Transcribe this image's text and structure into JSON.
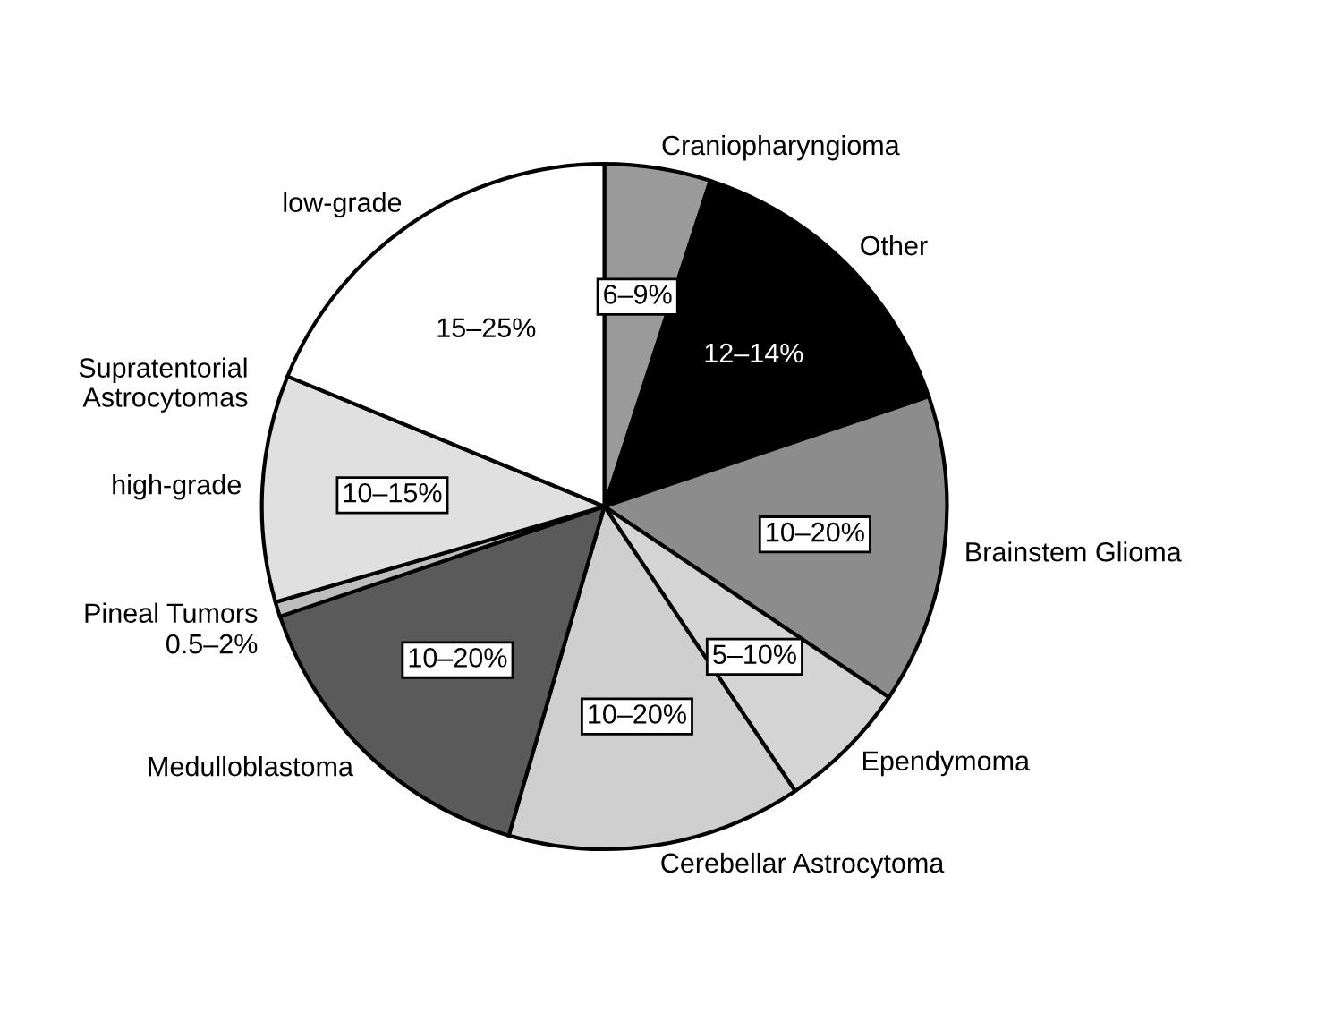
{
  "chart_data": {
    "type": "pie",
    "categories": [
      "Craniopharyngioma",
      "Other",
      "Brainstem Glioma",
      "Ependymoma",
      "Cerebellar Astrocytoma",
      "Medulloblastoma",
      "Pineal Tumors",
      "high-grade",
      "low-grade"
    ],
    "values": [
      5.0,
      14.8,
      14.6,
      6.2,
      13.9,
      15.3,
      0.7,
      10.7,
      18.8
    ],
    "colors": [
      "#9a9a9a",
      "#000000",
      "#8c8c8c",
      "#d4d4d4",
      "#cfcfcf",
      "#5a5a5a",
      "#bdbdbd",
      "#e0e0e0",
      "#ffffff"
    ],
    "annotations": [
      "Supratentorial\nAstrocytomas",
      {
        "text": "6–9%",
        "x": "Craniopharyngioma"
      },
      {
        "text": "12–14%",
        "x": "Other"
      },
      {
        "text": "10–20%",
        "x": "Brainstem Glioma"
      },
      {
        "text": "5–10%",
        "x": "Ependymoma"
      },
      {
        "text": "10–20%",
        "x": "Cerebellar Astrocytoma"
      },
      {
        "text": "10–20%",
        "x": "Medulloblastoma"
      },
      {
        "text": "0.5–2%",
        "x": "Pineal Tumors"
      },
      {
        "text": "10–15%",
        "x": "high-grade"
      },
      {
        "text": "15–25%",
        "x": "low-grade"
      }
    ]
  }
}
